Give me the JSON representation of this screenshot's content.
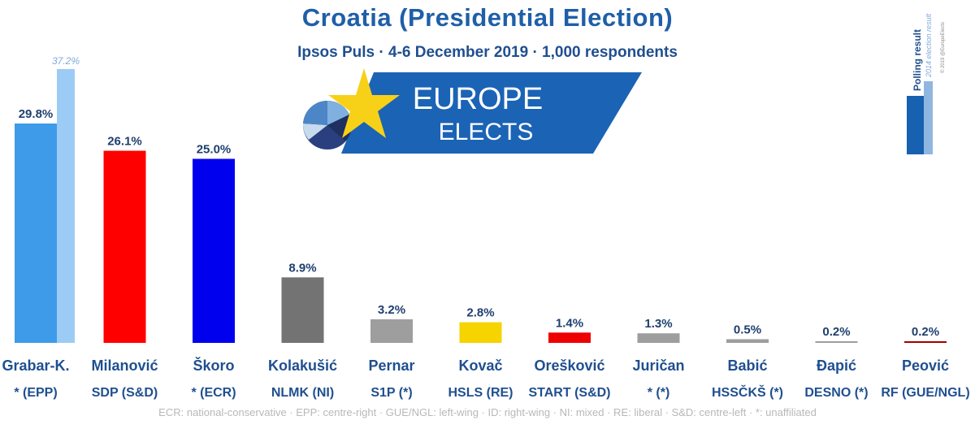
{
  "header": {
    "title": "Croatia (Presidential Election)",
    "subtitle": "Ipsos Puls · 4-6 December 2019 · 1,000 respondents"
  },
  "logo": {
    "line1": "EUROPE",
    "line2": "ELECTS"
  },
  "legend": {
    "polling": "Polling result",
    "previous": "2014 election result",
    "credit": "© 2019 @EuropeElects"
  },
  "footer": "ECR: national-conservative · EPP: centre-right · GUE/NGL: left-wing · ID: right-wing · NI: mixed · RE: liberal · S&D: centre-left · *: unaffiliated",
  "chart_data": {
    "type": "bar",
    "title": "Croatia (Presidential Election)",
    "ylim": [
      0,
      40
    ],
    "grid": false,
    "categories": [
      "Grabar-K.",
      "Milanović",
      "Škoro",
      "Kolakušić",
      "Pernar",
      "Kovač",
      "Orešković",
      "Juričan",
      "Babić",
      "Ðapić",
      "Peović"
    ],
    "parties": [
      "* (EPP)",
      "SDP (S&D)",
      "* (ECR)",
      "NLMK (NI)",
      "S1P (*)",
      "HSLS (RE)",
      "START (S&D)",
      "* (*)",
      "HSSČKŠ (*)",
      "DESNO (*)",
      "RF (GUE/NGL)"
    ],
    "series": [
      {
        "name": "Polling result",
        "values": [
          29.8,
          26.1,
          25.0,
          8.9,
          3.2,
          2.8,
          1.4,
          1.3,
          0.5,
          0.2,
          0.2
        ],
        "labels": [
          "29.8%",
          "26.1%",
          "25.0%",
          "8.9%",
          "3.2%",
          "2.8%",
          "1.4%",
          "1.3%",
          "0.5%",
          "0.2%",
          "0.2%"
        ]
      },
      {
        "name": "2014 election result",
        "values": [
          37.2,
          null,
          null,
          null,
          null,
          null,
          null,
          null,
          null,
          null,
          null
        ],
        "labels": [
          "37.2%",
          null,
          null,
          null,
          null,
          null,
          null,
          null,
          null,
          null,
          null
        ]
      }
    ],
    "colors": [
      "#3d9be9",
      "#ff0000",
      "#0000ee",
      "#737373",
      "#9e9e9e",
      "#f5d400",
      "#ee0000",
      "#9e9e9e",
      "#9e9e9e",
      "#9e9e9e",
      "#a00000"
    ],
    "previous_color": "#9cccf5"
  }
}
